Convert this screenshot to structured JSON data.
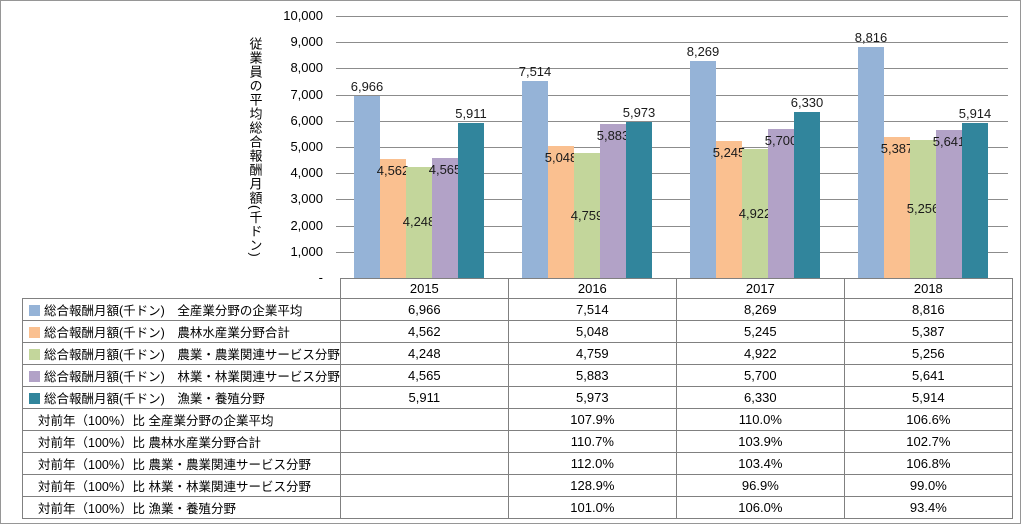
{
  "chart_data": {
    "type": "bar",
    "title": "",
    "ylabel": "従業員の平均総合報酬月額(千ドン)",
    "xlabel": "",
    "ylim": [
      0,
      10000
    ],
    "ytick_interval": 1000,
    "grid": true,
    "legend_position": "data-table",
    "ytick_values": [
      10000,
      9000,
      8000,
      7000,
      6000,
      5000,
      4000,
      3000,
      2000,
      1000,
      0
    ],
    "ytick_labels": [
      "10,000",
      "9,000",
      "8,000",
      "7,000",
      "6,000",
      "5,000",
      "4,000",
      "3,000",
      "2,000",
      "1,000",
      "-"
    ],
    "categories": [
      "2015",
      "2016",
      "2017",
      "2018"
    ],
    "series": [
      {
        "name": "総合報酬月額(千ドン)　全産業分野の企業平均",
        "color": "#95B3D7",
        "label_position": "outside",
        "values": [
          6966,
          7514,
          8269,
          8816
        ],
        "labels": [
          "6,966",
          "7,514",
          "8,269",
          "8,816"
        ]
      },
      {
        "name": "総合報酬月額(千ドン)　農林水産業分野合計",
        "color": "#FAC090",
        "label_position": "inside",
        "values": [
          4562,
          5048,
          5245,
          5387
        ],
        "labels": [
          "4,562",
          "5,048",
          "5,245",
          "5,387"
        ]
      },
      {
        "name": "総合報酬月額(千ドン)　農業・農業関連サービス分野",
        "color": "#C3D69B",
        "label_position": "center",
        "values": [
          4248,
          4759,
          4922,
          5256
        ],
        "labels": [
          "4,248",
          "4,759",
          "4,922",
          "5,256"
        ]
      },
      {
        "name": "総合報酬月額(千ドン)　林業・林業関連サービス分野",
        "color": "#B2A2C7",
        "label_position": "inside",
        "values": [
          4565,
          5883,
          5700,
          5641
        ],
        "labels": [
          "4,565",
          "5,883",
          "5,700",
          "5,641"
        ]
      },
      {
        "name": "総合報酬月額(千ドン)　漁業・養殖分野",
        "color": "#31859C",
        "label_position": "outside",
        "values": [
          5911,
          5973,
          6330,
          5914
        ],
        "labels": [
          "5,911",
          "5,973",
          "6,330",
          "5,914"
        ]
      }
    ],
    "pct_rows": [
      {
        "name": "対前年（100%）比 全産業分野の企業平均",
        "values": [
          "",
          "107.9%",
          "110.0%",
          "106.6%"
        ]
      },
      {
        "name": "対前年（100%）比 農林水産業分野合計",
        "values": [
          "",
          "110.7%",
          "103.9%",
          "102.7%"
        ]
      },
      {
        "name": "対前年（100%）比 農業・農業関連サービス分野",
        "values": [
          "",
          "112.0%",
          "103.4%",
          "106.8%"
        ]
      },
      {
        "name": "対前年（100%）比 林業・林業関連サービス分野",
        "values": [
          "",
          "128.9%",
          "96.9%",
          "99.0%"
        ]
      },
      {
        "name": "対前年（100%）比 漁業・養殖分野",
        "values": [
          "",
          "101.0%",
          "106.0%",
          "93.4%"
        ]
      }
    ],
    "colors": {
      "gridline": "#8c8c8c",
      "table_border": "#808080",
      "outer_border": "#969696",
      "label_text": "#1a1a1a"
    }
  }
}
